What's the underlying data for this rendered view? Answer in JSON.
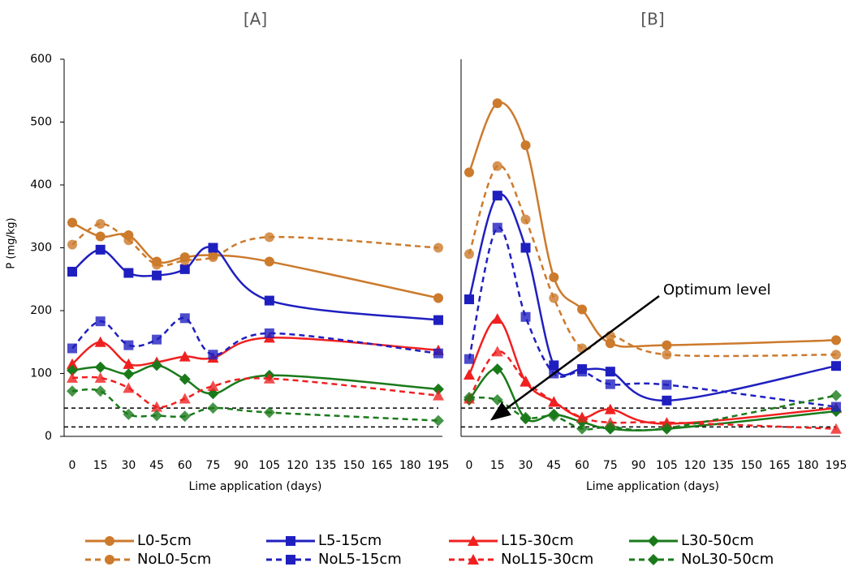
{
  "chart_data": [
    {
      "type": "line",
      "title": "[A]",
      "y_label": "P (mg/kg)",
      "x_label": "Lime application (days)",
      "x": [
        0,
        15,
        30,
        45,
        60,
        75,
        105,
        195
      ],
      "xlim": [
        0,
        195
      ],
      "xticks": [
        0,
        15,
        30,
        45,
        60,
        75,
        90,
        105,
        120,
        135,
        150,
        165,
        180,
        195
      ],
      "ylim": [
        0,
        600
      ],
      "yticks": [
        0,
        100,
        200,
        300,
        400,
        500,
        600
      ],
      "reference_lines": [
        45,
        15
      ],
      "series": [
        {
          "name": "L0-5cm",
          "color": "#cc7a2c",
          "marker": "circle",
          "dashed": false,
          "values": [
            340,
            318,
            320,
            278,
            285,
            288,
            278,
            220
          ]
        },
        {
          "name": "L5-15cm",
          "color": "#1f1fc0",
          "marker": "square",
          "dashed": false,
          "values": [
            262,
            297,
            260,
            256,
            266,
            300,
            216,
            185
          ]
        },
        {
          "name": "L15-30cm",
          "color": "#f02020",
          "marker": "triangle",
          "dashed": false,
          "values": [
            115,
            150,
            115,
            118,
            127,
            125,
            157,
            137
          ]
        },
        {
          "name": "L30-50cm",
          "color": "#1a7a1a",
          "marker": "diamond",
          "dashed": false,
          "values": [
            105,
            110,
            99,
            113,
            91,
            68,
            97,
            75
          ]
        },
        {
          "name": "NoL0-5cm",
          "color": "#cc7a2c",
          "marker": "circle",
          "dashed": true,
          "values": [
            305,
            338,
            312,
            273,
            280,
            285,
            317,
            300
          ]
        },
        {
          "name": "NoL5-15cm",
          "color": "#1f1fc0",
          "marker": "square",
          "dashed": true,
          "values": [
            140,
            183,
            145,
            154,
            188,
            130,
            164,
            132
          ]
        },
        {
          "name": "NoL15-30cm",
          "color": "#f02020",
          "marker": "triangle",
          "dashed": true,
          "values": [
            93,
            93,
            77,
            47,
            60,
            80,
            92,
            65
          ]
        },
        {
          "name": "NoL30-50cm",
          "color": "#1a7a1a",
          "marker": "diamond",
          "dashed": true,
          "values": [
            72,
            72,
            35,
            33,
            32,
            45,
            38,
            25
          ]
        }
      ]
    },
    {
      "type": "line",
      "title": "[B]",
      "x_label": "Lime application (days)",
      "x": [
        0,
        15,
        30,
        45,
        60,
        75,
        105,
        195
      ],
      "xlim": [
        0,
        195
      ],
      "xticks": [
        0,
        15,
        30,
        45,
        60,
        75,
        90,
        105,
        120,
        135,
        150,
        165,
        180,
        195
      ],
      "ylim": [
        0,
        600
      ],
      "reference_lines": [
        45,
        15
      ],
      "annotation": "Optimum level",
      "series": [
        {
          "name": "L0-5cm",
          "color": "#cc7a2c",
          "marker": "circle",
          "dashed": false,
          "values": [
            420,
            530,
            463,
            253,
            202,
            148,
            145,
            153
          ]
        },
        {
          "name": "L5-15cm",
          "color": "#1f1fc0",
          "marker": "square",
          "dashed": false,
          "values": [
            218,
            383,
            300,
            113,
            107,
            103,
            57,
            112
          ]
        },
        {
          "name": "L15-30cm",
          "color": "#f02020",
          "marker": "triangle",
          "dashed": false,
          "values": [
            98,
            187,
            87,
            55,
            30,
            43,
            20,
            45
          ]
        },
        {
          "name": "L30-50cm",
          "color": "#1a7a1a",
          "marker": "diamond",
          "dashed": false,
          "values": [
            58,
            107,
            28,
            35,
            23,
            12,
            12,
            40
          ]
        },
        {
          "name": "NoL0-5cm",
          "color": "#cc7a2c",
          "marker": "circle",
          "dashed": true,
          "values": [
            290,
            430,
            345,
            220,
            140,
            160,
            130,
            130
          ]
        },
        {
          "name": "NoL5-15cm",
          "color": "#1f1fc0",
          "marker": "square",
          "dashed": true,
          "values": [
            123,
            332,
            190,
            100,
            103,
            83,
            82,
            47
          ]
        },
        {
          "name": "NoL15-30cm",
          "color": "#f02020",
          "marker": "triangle",
          "dashed": true,
          "values": [
            60,
            135,
            88,
            55,
            30,
            22,
            22,
            12
          ]
        },
        {
          "name": "NoL30-50cm",
          "color": "#1a7a1a",
          "marker": "diamond",
          "dashed": true,
          "values": [
            62,
            58,
            30,
            32,
            12,
            15,
            13,
            65
          ]
        }
      ]
    }
  ]
}
